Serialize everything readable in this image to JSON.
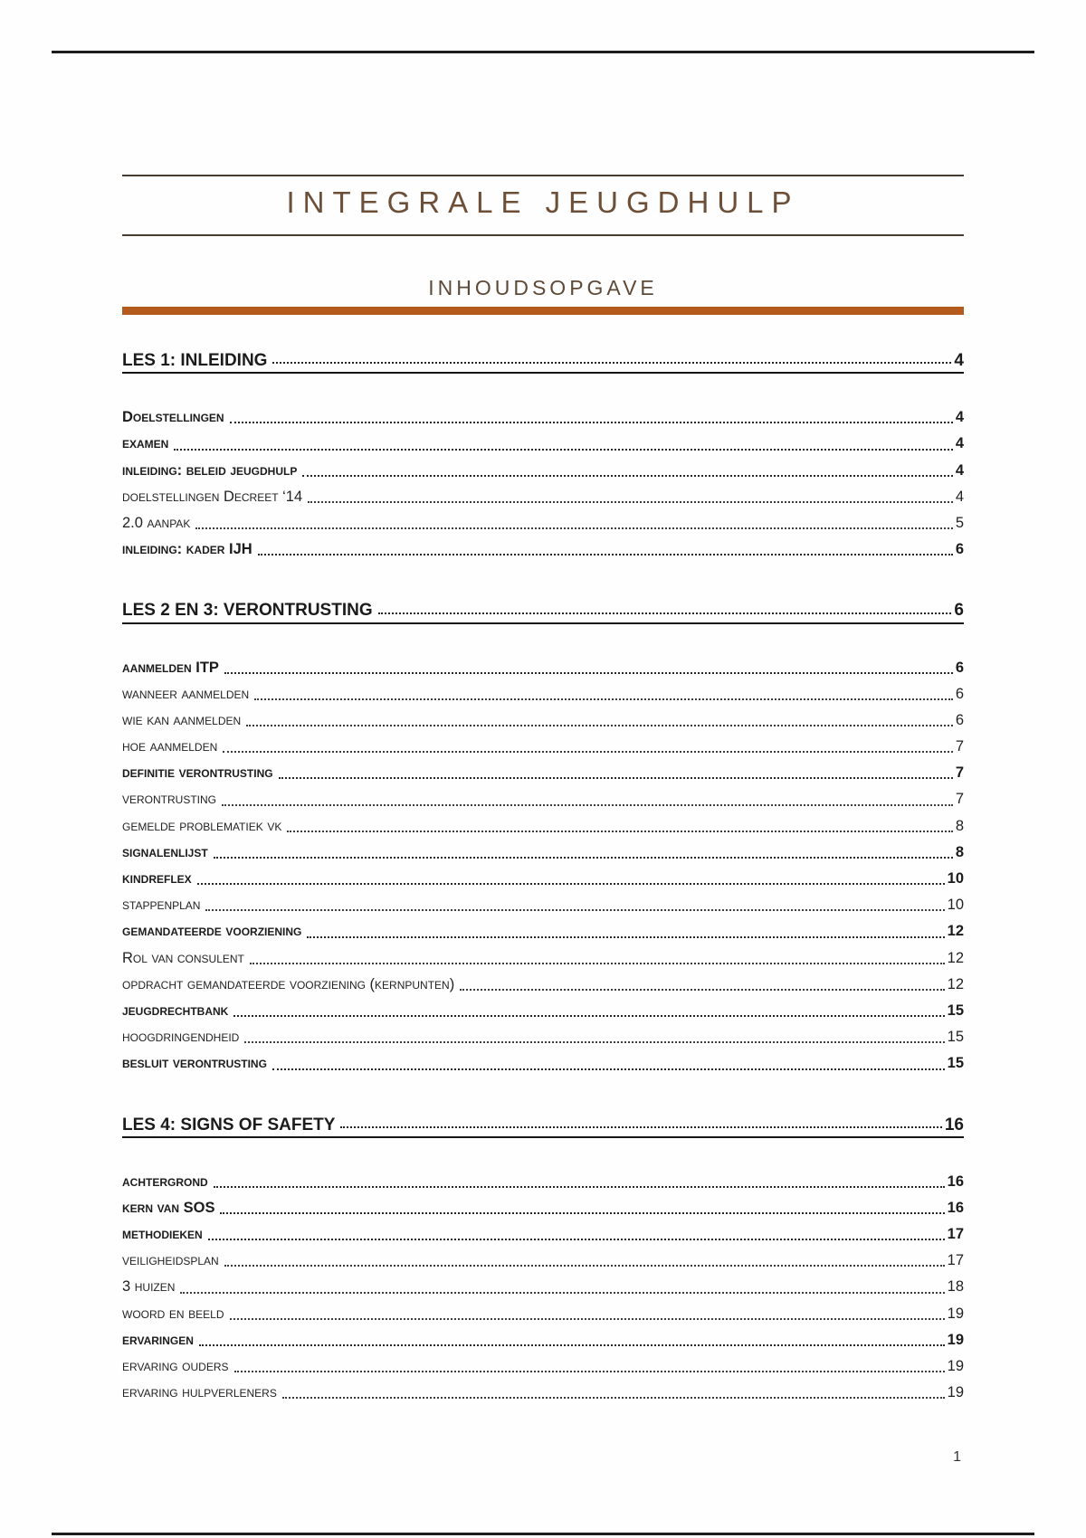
{
  "header": {
    "title": "INTEGRALE JEUGDHULP",
    "toc_heading": "INHOUDSOPGAVE"
  },
  "footer": {
    "page_number": "1"
  },
  "colors": {
    "title_text": "#6d4f38",
    "toc_heading_text": "#5e4937",
    "title_rule": "#4b3c30",
    "accent_rule": "#b45a1d",
    "page_border": "#1c1c1c",
    "entry_text": "#1b1b1b"
  },
  "toc": {
    "entries": [
      {
        "label": "LES 1: INLEIDING",
        "page": "4",
        "level": "h1"
      },
      {
        "label": "Doelstellingen",
        "page": "4",
        "level": "h2"
      },
      {
        "label": "examen",
        "page": "4",
        "level": "h2"
      },
      {
        "label": "inleiding: beleid jeugdhulp",
        "page": "4",
        "level": "h2"
      },
      {
        "label": "doelstellingen Decreet ‘14",
        "page": "4",
        "level": "h3"
      },
      {
        "label": "2.0 aanpak",
        "page": "5",
        "level": "h3"
      },
      {
        "label": "inleiding: kader IJH",
        "page": "6",
        "level": "h2"
      },
      {
        "label": "LES 2 EN 3: VERONTRUSTING",
        "page": "6",
        "level": "h1"
      },
      {
        "label": "aanmelden ITP",
        "page": "6",
        "level": "h2"
      },
      {
        "label": "wanneer aanmelden",
        "page": "6",
        "level": "h3"
      },
      {
        "label": "wie kan aanmelden",
        "page": "6",
        "level": "h3"
      },
      {
        "label": "hoe aanmelden",
        "page": "7",
        "level": "h3"
      },
      {
        "label": "definitie verontrusting",
        "page": "7",
        "level": "h2"
      },
      {
        "label": "verontrusting",
        "page": "7",
        "level": "h3"
      },
      {
        "label": "gemelde problematiek vk",
        "page": "8",
        "level": "h3"
      },
      {
        "label": "signalenlijst",
        "page": "8",
        "level": "h2"
      },
      {
        "label": "kindreflex",
        "page": "10",
        "level": "h2"
      },
      {
        "label": "stappenplan",
        "page": "10",
        "level": "h3"
      },
      {
        "label": "gemandateerde voorziening",
        "page": "12",
        "level": "h2"
      },
      {
        "label": "Rol van consulent",
        "page": "12",
        "level": "h3"
      },
      {
        "label": "opdracht gemandateerde voorziening (kernpunten)",
        "page": "12",
        "level": "h3"
      },
      {
        "label": "jeugdrechtbank",
        "page": "15",
        "level": "h2"
      },
      {
        "label": "hoogdringendheid",
        "page": "15",
        "level": "h3"
      },
      {
        "label": "besluit verontrusting",
        "page": "15",
        "level": "h2"
      },
      {
        "label": "LES 4: SIGNS OF SAFETY",
        "page": "16",
        "level": "h1"
      },
      {
        "label": "achtergrond",
        "page": "16",
        "level": "h2"
      },
      {
        "label": "kern van SOS",
        "page": "16",
        "level": "h2"
      },
      {
        "label": "methodieken",
        "page": "17",
        "level": "h2"
      },
      {
        "label": "veiligheidsplan",
        "page": "17",
        "level": "h3"
      },
      {
        "label": "3 huizen",
        "page": "18",
        "level": "h3"
      },
      {
        "label": "woord en beeld",
        "page": "19",
        "level": "h3"
      },
      {
        "label": "ervaringen",
        "page": "19",
        "level": "h2"
      },
      {
        "label": "ervaring ouders",
        "page": "19",
        "level": "h3"
      },
      {
        "label": "ervaring hulpverleners",
        "page": "19",
        "level": "h3"
      }
    ]
  }
}
